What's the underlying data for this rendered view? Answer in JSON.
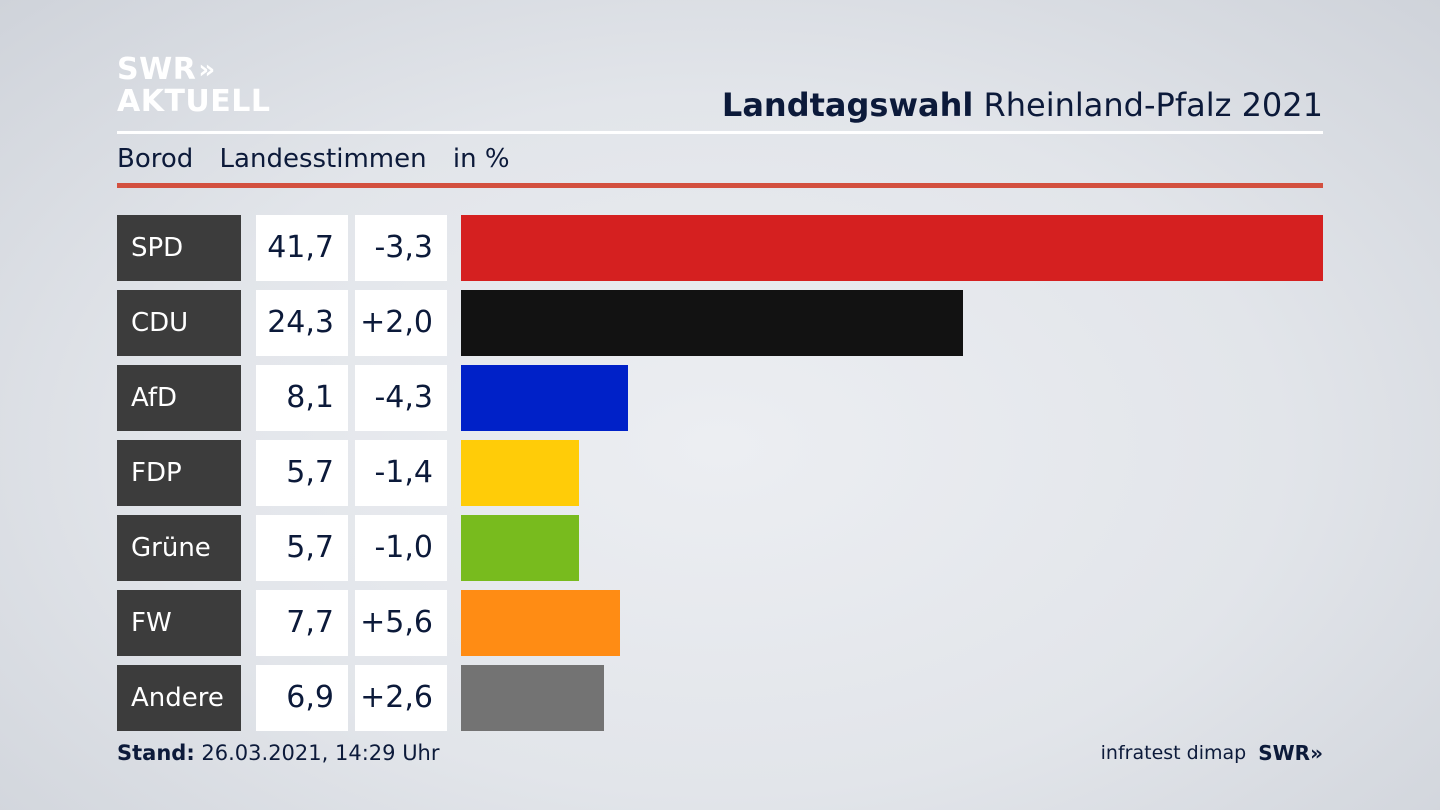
{
  "header": {
    "logo_line1": "SWR",
    "logo_chevrons": "»",
    "logo_line2": "AKTUELL",
    "title_bold": "Landtagswahl",
    "title_rest": "Rheinland-Pfalz 2021"
  },
  "subtitle": {
    "location": "Borod",
    "category": "Landesstimmen",
    "unit": "in %"
  },
  "footer": {
    "stand_label": "Stand:",
    "stand_value": "26.03.2021, 14:29 Uhr",
    "source": "infratest dimap",
    "source_logo": "SWR»"
  },
  "chart_data": {
    "type": "bar",
    "orientation": "horizontal",
    "categories": [
      "SPD",
      "CDU",
      "AfD",
      "FDP",
      "Grüne",
      "FW",
      "Andere"
    ],
    "values": [
      41.7,
      24.3,
      8.1,
      5.7,
      5.7,
      7.7,
      6.9
    ],
    "value_labels": [
      "41,7",
      "24,3",
      "8,1",
      "5,7",
      "5,7",
      "7,7",
      "6,9"
    ],
    "changes": [
      "-3,3",
      "+2,0",
      "-4,3",
      "-1,4",
      "-1,0",
      "+5,6",
      "+2,6"
    ],
    "colors": [
      "#d52020",
      "#121212",
      "#0021c8",
      "#ffcc08",
      "#78bb1e",
      "#ff8c14",
      "#737373"
    ],
    "xlim": [
      0,
      41.7
    ]
  }
}
